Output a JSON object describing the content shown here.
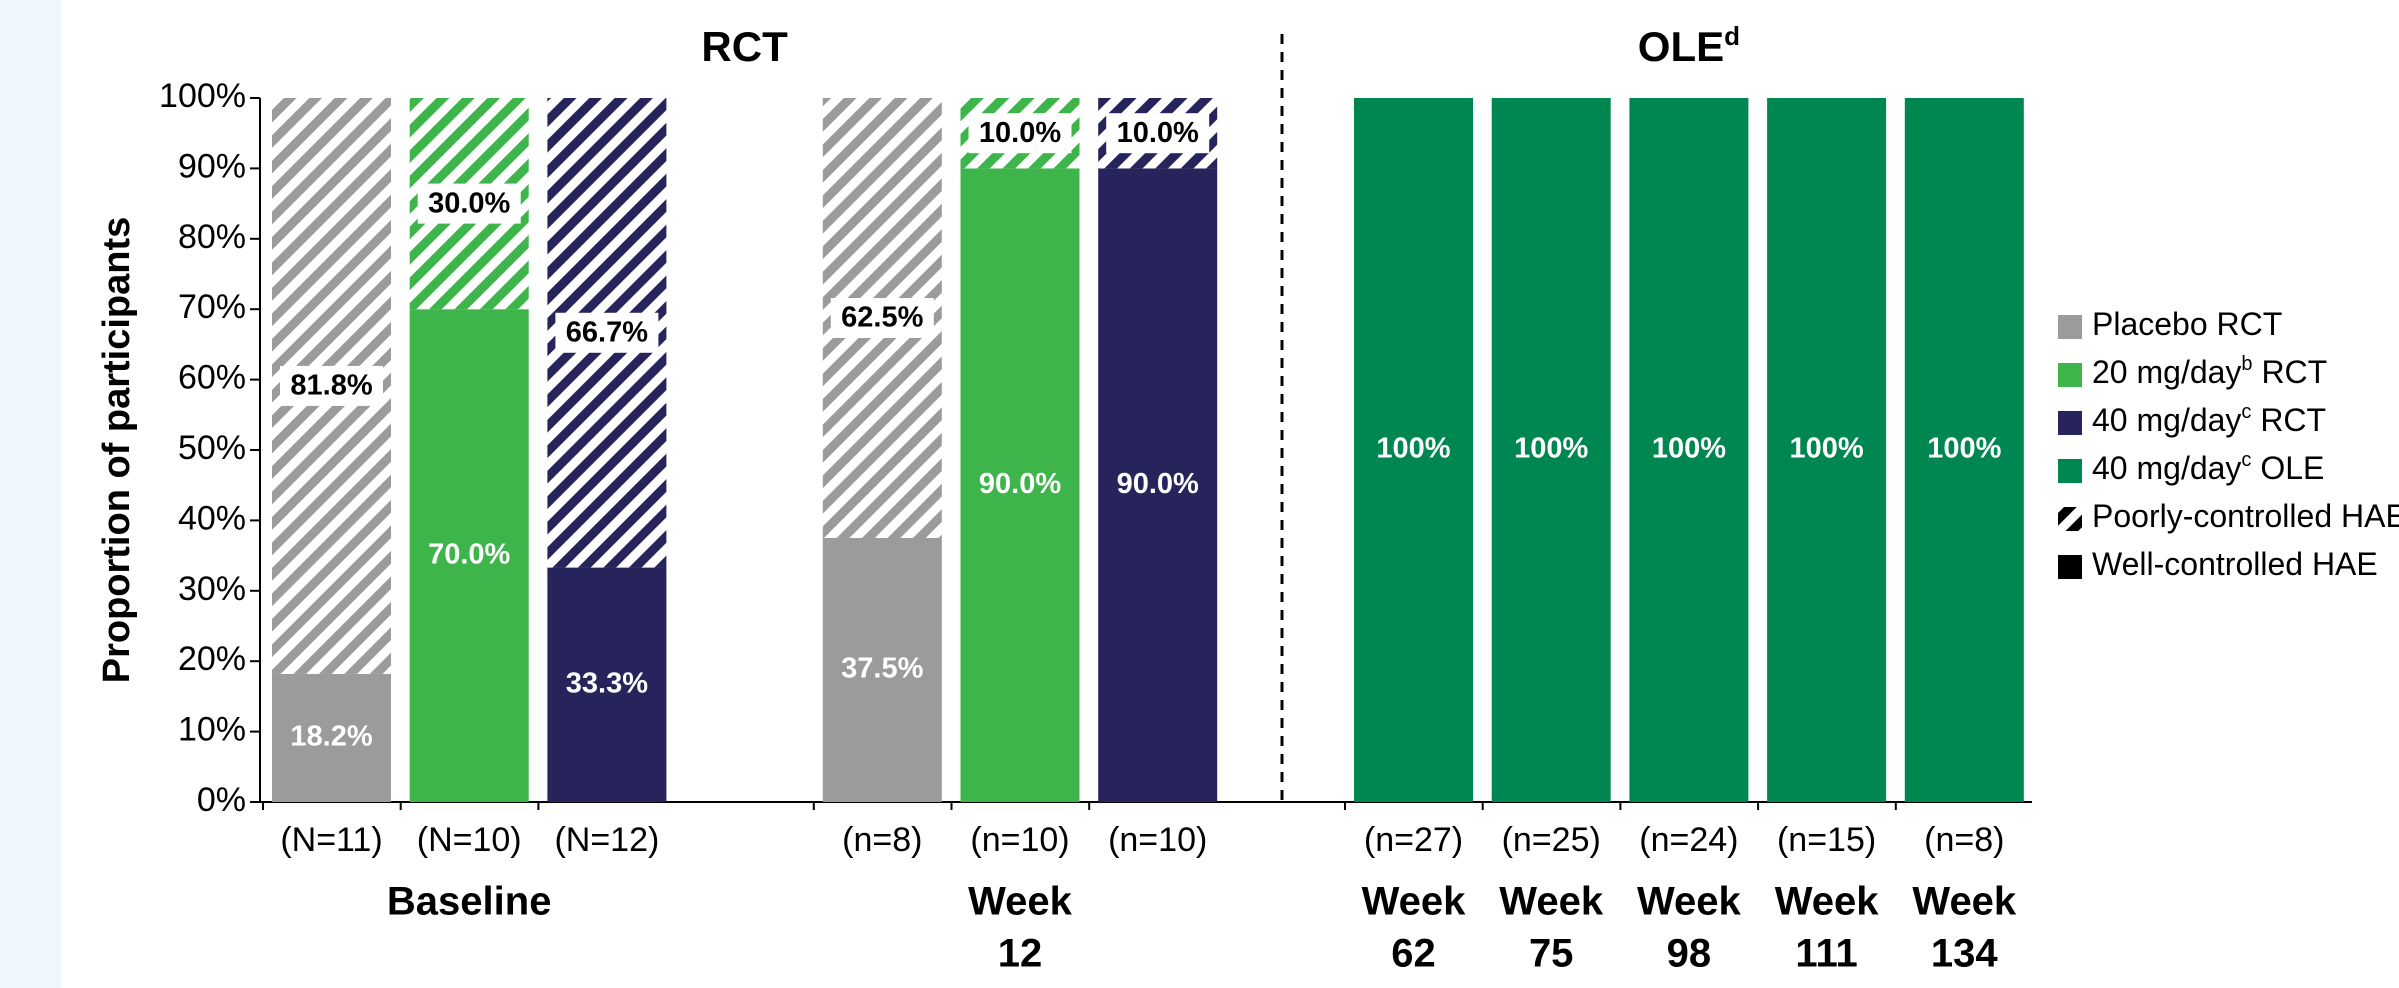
{
  "chart_data": {
    "type": "stacked_bar",
    "ylabel": "Proportion of participants",
    "ylim": [
      0,
      100
    ],
    "yticks": [
      {
        "value": 0,
        "label": "0%"
      },
      {
        "value": 10,
        "label": "10%"
      },
      {
        "value": 20,
        "label": "20%"
      },
      {
        "value": 30,
        "label": "30%"
      },
      {
        "value": 40,
        "label": "40%"
      },
      {
        "value": 50,
        "label": "50%"
      },
      {
        "value": 60,
        "label": "60%"
      },
      {
        "value": 70,
        "label": "70%"
      },
      {
        "value": 80,
        "label": "80%"
      },
      {
        "value": 90,
        "label": "90%"
      },
      {
        "value": 100,
        "label": "100%"
      }
    ],
    "sections": [
      {
        "title": "RCT",
        "groups": [
          {
            "label": [
              "Baseline"
            ],
            "categories": [
              "(N=11)",
              "(N=10)",
              "(N=12)"
            ]
          },
          {
            "label": [
              "Week",
              "12"
            ],
            "categories": [
              "(n=8)",
              "(n=10)",
              "(n=10)"
            ]
          }
        ]
      },
      {
        "title": "OLE",
        "sup": "d",
        "groups": [
          {
            "label": [
              "Week",
              "62"
            ],
            "categories": [
              "(n=27)"
            ]
          },
          {
            "label": [
              "Week",
              "75"
            ],
            "categories": [
              "(n=25)"
            ]
          },
          {
            "label": [
              "Week",
              "98"
            ],
            "categories": [
              "(n=24)"
            ]
          },
          {
            "label": [
              "Week",
              "111"
            ],
            "categories": [
              "(n=15)"
            ]
          },
          {
            "label": [
              "Week",
              "134"
            ],
            "categories": [
              "(n=8)"
            ]
          }
        ]
      }
    ],
    "bar_colors": [
      "#9b9b9b",
      "#3db54a",
      "#26245a",
      "#9b9b9b",
      "#3db54a",
      "#26245a",
      "#008650",
      "#008650",
      "#008650",
      "#008650",
      "#008650"
    ],
    "series": [
      {
        "name": "Well-controlled HAE",
        "color": "#000000",
        "pattern": "solid",
        "values": [
          18.2,
          70.0,
          33.3,
          37.5,
          90.0,
          90.0,
          100,
          100,
          100,
          100,
          100
        ],
        "value_labels": [
          "18.2%",
          "70.0%",
          "33.3%",
          "37.5%",
          "90.0%",
          "90.0%",
          "100%",
          "100%",
          "100%",
          "100%",
          "100%"
        ]
      },
      {
        "name": "Poorly-controlled HAE",
        "color": "#000000",
        "pattern": "hatch",
        "values": [
          81.8,
          30.0,
          66.7,
          62.5,
          10.0,
          10.0,
          0,
          0,
          0,
          0,
          0
        ],
        "value_labels": [
          "81.8%",
          "30.0%",
          "66.7%",
          "62.5%",
          "10.0%",
          "10.0%",
          null,
          null,
          null,
          null,
          null
        ]
      }
    ],
    "legend_arms": [
      {
        "name": "Placebo RCT",
        "color": "#9b9b9b"
      },
      {
        "name": "20 mg/day",
        "sup": "b",
        "suffix": " RCT",
        "color": "#3db54a"
      },
      {
        "name": "40 mg/day",
        "sup": "c",
        "suffix": " RCT",
        "color": "#26245a"
      },
      {
        "name": "40 mg/day",
        "sup": "c",
        "suffix": " OLE",
        "color": "#008650"
      }
    ]
  }
}
